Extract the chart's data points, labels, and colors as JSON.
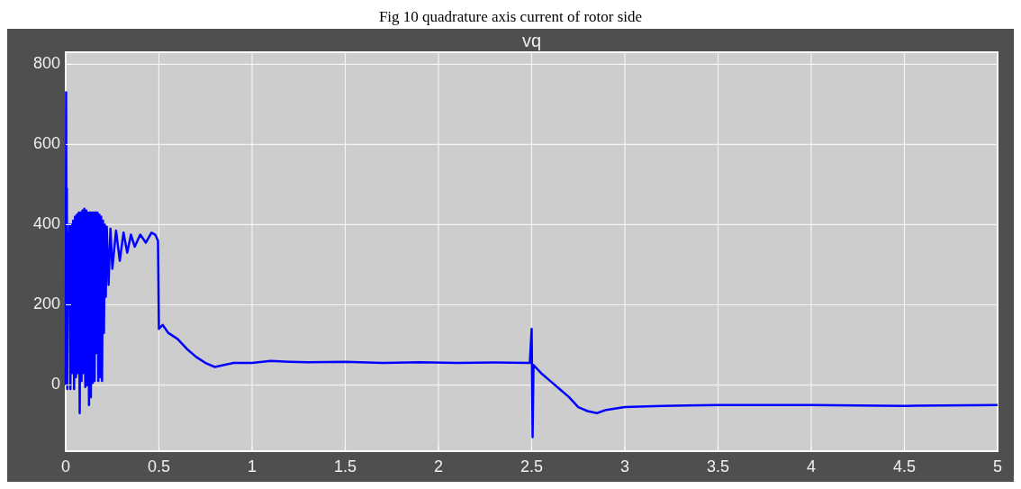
{
  "chart_data": {
    "type": "line",
    "title": "vq",
    "annotations": [
      "Fig 10 quadrature axis current of rotor side"
    ],
    "x": [
      0,
      0.002,
      0.004,
      0.006,
      0.008,
      0.012,
      0.016,
      0.02,
      0.025,
      0.03,
      0.035,
      0.04,
      0.045,
      0.05,
      0.055,
      0.06,
      0.065,
      0.07,
      0.075,
      0.08,
      0.085,
      0.09,
      0.095,
      0.1,
      0.105,
      0.11,
      0.115,
      0.12,
      0.125,
      0.13,
      0.135,
      0.14,
      0.145,
      0.15,
      0.155,
      0.16,
      0.165,
      0.17,
      0.175,
      0.18,
      0.185,
      0.19,
      0.195,
      0.2,
      0.205,
      0.21,
      0.215,
      0.22,
      0.23,
      0.24,
      0.25,
      0.27,
      0.29,
      0.31,
      0.33,
      0.35,
      0.37,
      0.4,
      0.43,
      0.46,
      0.48,
      0.495,
      0.5,
      0.52,
      0.55,
      0.6,
      0.65,
      0.7,
      0.75,
      0.8,
      0.85,
      0.9,
      1.0,
      1.1,
      1.2,
      1.3,
      1.5,
      1.7,
      1.9,
      2.1,
      2.3,
      2.49,
      2.5,
      2.505,
      2.51,
      2.55,
      2.6,
      2.65,
      2.7,
      2.75,
      2.8,
      2.85,
      2.9,
      3.0,
      3.2,
      3.5,
      4.0,
      4.5,
      5.0
    ],
    "series": [
      {
        "color": "#0000ff",
        "values": [
          0,
          730,
          300,
          490,
          -10,
          380,
          200,
          400,
          -10,
          400,
          30,
          410,
          -10,
          420,
          20,
          425,
          30,
          430,
          -70,
          430,
          10,
          435,
          30,
          440,
          -5,
          435,
          0,
          430,
          -50,
          430,
          -30,
          430,
          5,
          430,
          10,
          430,
          80,
          430,
          10,
          425,
          20,
          420,
          10,
          410,
          130,
          400,
          220,
          395,
          250,
          390,
          290,
          385,
          310,
          380,
          330,
          375,
          345,
          375,
          355,
          380,
          375,
          360,
          140,
          150,
          130,
          115,
          90,
          70,
          55,
          45,
          50,
          55,
          55,
          60,
          58,
          57,
          58,
          55,
          57,
          55,
          56,
          55,
          140,
          -130,
          50,
          30,
          10,
          -10,
          -30,
          -55,
          -65,
          -70,
          -62,
          -55,
          -52,
          -50,
          -50,
          -52,
          -50
        ]
      }
    ],
    "xlim": [
      0,
      5
    ],
    "xticks": [
      0,
      0.5,
      1,
      1.5,
      2,
      2.5,
      3,
      3.5,
      4,
      4.5,
      5
    ],
    "ylim": [
      -165,
      830
    ],
    "yticks": [
      0,
      200,
      400,
      600,
      800
    ],
    "grid": true,
    "marker": "none",
    "line_style": "solid"
  }
}
